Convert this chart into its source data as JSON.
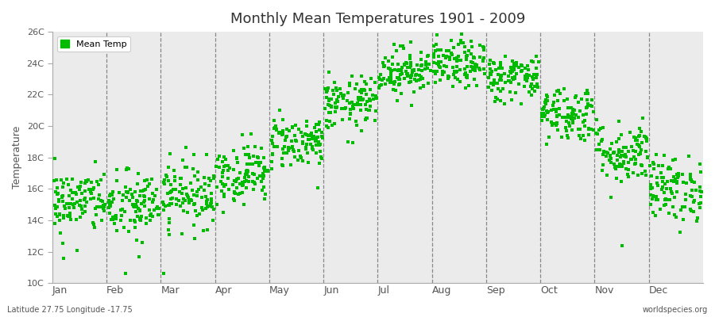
{
  "title": "Monthly Mean Temperatures 1901 - 2009",
  "ylabel": "Temperature",
  "ylim": [
    10,
    26
  ],
  "yticks": [
    10,
    12,
    14,
    16,
    18,
    20,
    22,
    24,
    26
  ],
  "ytick_labels": [
    "10C",
    "12C",
    "14C",
    "16C",
    "18C",
    "20C",
    "22C",
    "24C",
    "26C"
  ],
  "months": [
    "Jan",
    "Feb",
    "Mar",
    "Apr",
    "May",
    "Jun",
    "Jul",
    "Aug",
    "Sep",
    "Oct",
    "Nov",
    "Dec"
  ],
  "month_means": [
    15.2,
    14.9,
    15.7,
    17.0,
    19.0,
    21.4,
    23.5,
    23.9,
    23.1,
    20.8,
    18.3,
    16.0
  ],
  "month_stds": [
    1.0,
    1.1,
    1.05,
    0.95,
    0.85,
    0.85,
    0.75,
    0.75,
    0.75,
    0.9,
    1.0,
    1.05
  ],
  "n_points": 109,
  "dot_color": "#00BB00",
  "dot_size": 5,
  "bg_color": "#ebebeb",
  "legend_label": "Mean Temp",
  "bottom_left": "Latitude 27.75 Longitude -17.75",
  "bottom_right": "worldspecies.org"
}
